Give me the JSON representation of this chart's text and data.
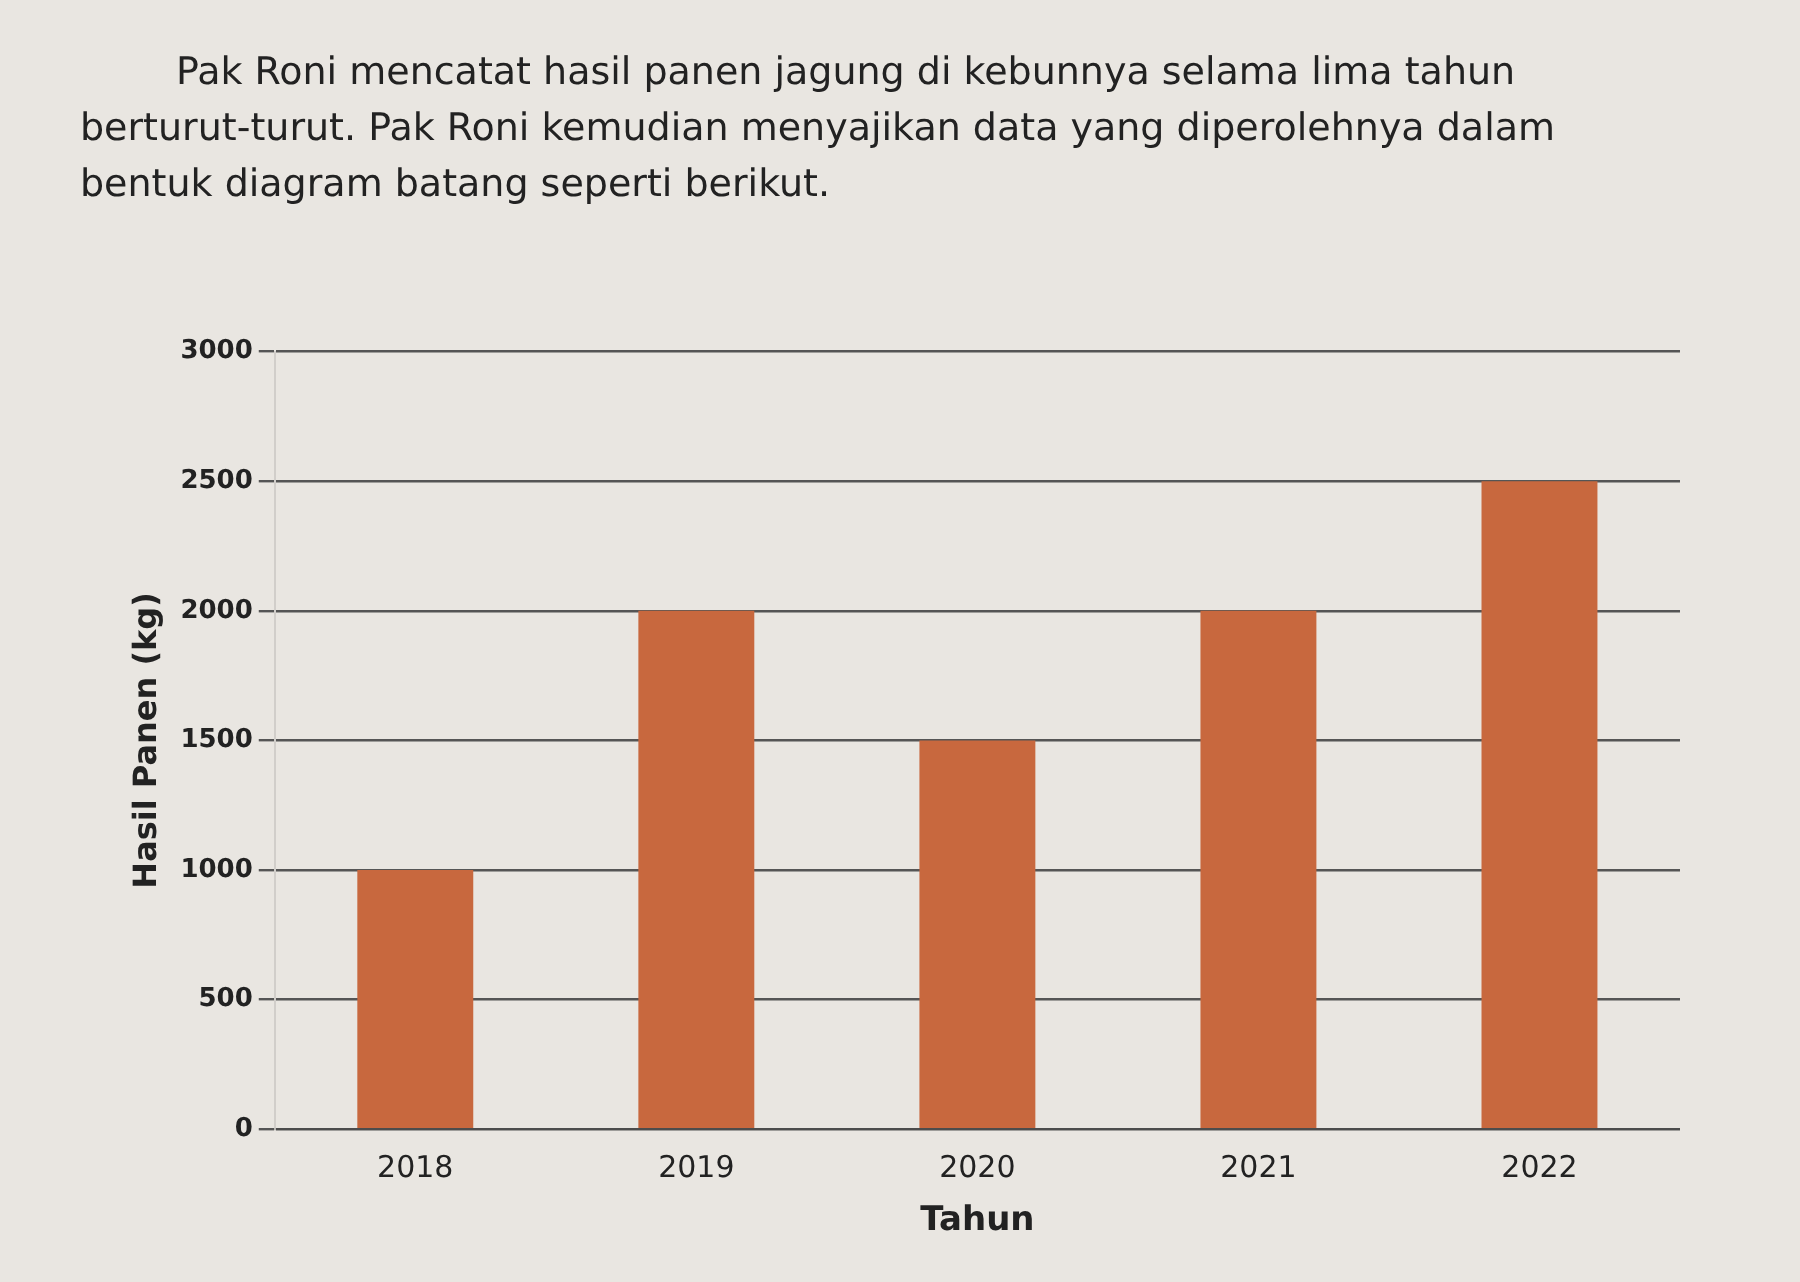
{
  "chart_data": {
    "type": "bar",
    "title": "Pak Roni mencatat hasil panen jagung di kebunnya selama lima tahun berturut-turut. Pak Roni kemudian menyajikan data yang diperolehnya dalam bentuk diagram batang seperti berikut.",
    "xlabel": "Tahun",
    "ylabel": "Hasil Panen (kg)",
    "categories": [
      "2018",
      "2019",
      "2020",
      "2021",
      "2022"
    ],
    "values": [
      1000,
      2000,
      1500,
      2000,
      2500
    ],
    "color": "#c8683e",
    "ylim": [
      0,
      3000
    ],
    "yticks": [
      0,
      500,
      1000,
      1500,
      2000,
      2500,
      3000
    ],
    "grid": "y"
  }
}
